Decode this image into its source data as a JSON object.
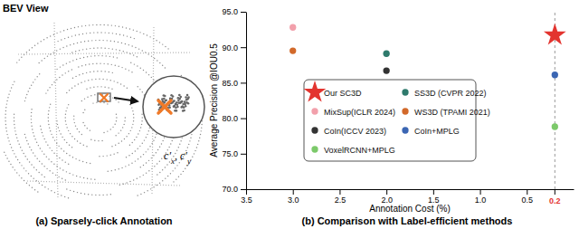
{
  "panel_a": {
    "title": "BEV View",
    "click_label": "c′x, c′y",
    "caption": "(a) Sparsely-click Annotation"
  },
  "chart_data": {
    "type": "scatter",
    "title": "(b) Comparison with Label-efficient methods",
    "x_label": "Annotation Cost (%)",
    "y_label": "Average Precision @IOU0.5",
    "xlim": [
      3.5,
      0.0
    ],
    "xticks": [
      {
        "value": 3.5,
        "label": "3.5"
      },
      {
        "value": 3.0,
        "label": "3.0"
      },
      {
        "value": 2.5,
        "label": "2.5"
      },
      {
        "value": 2.0,
        "label": "2.0"
      },
      {
        "value": 1.5,
        "label": "1.5"
      },
      {
        "value": 1.0,
        "label": "1.0"
      },
      {
        "value": 0.5,
        "label": "0.5"
      }
    ],
    "ylim": [
      70,
      95
    ],
    "yticks": [
      {
        "value": 70,
        "label": "70.0"
      },
      {
        "value": 75,
        "label": "75.0"
      },
      {
        "value": 80,
        "label": "80.0"
      },
      {
        "value": 85,
        "label": "85.0"
      },
      {
        "value": 90,
        "label": "90.0"
      },
      {
        "value": 95,
        "label": "95.0"
      }
    ],
    "grid": false,
    "legend": "center",
    "annotations": [
      {
        "x": 0.2,
        "text": "0.2",
        "color": "#e3342f"
      }
    ],
    "series": [
      {
        "name": "Our SC3D",
        "color": "#e3342f",
        "marker": "star",
        "x": [
          0.2
        ],
        "values": [
          91.7
        ]
      },
      {
        "name": "MixSup(ICLR 2024)",
        "color": "#f2a0ab",
        "marker": "circle",
        "x": [
          3.0
        ],
        "values": [
          92.8
        ]
      },
      {
        "name": "CoIn(ICCV 2023)",
        "color": "#333333",
        "marker": "circle",
        "x": [
          2.0
        ],
        "values": [
          86.7
        ]
      },
      {
        "name": "VoxelRCNN+MPLG",
        "color": "#7cc96a",
        "marker": "circle",
        "x": [
          0.2
        ],
        "values": [
          78.8
        ]
      },
      {
        "name": "SS3D (CVPR 2022)",
        "color": "#2e7a6c",
        "marker": "circle",
        "x": [
          2.0
        ],
        "values": [
          89.1
        ]
      },
      {
        "name": "WS3D (TPAMI 2021)",
        "color": "#d2692a",
        "marker": "circle",
        "x": [
          3.0
        ],
        "values": [
          89.5
        ]
      },
      {
        "name": "CoIn+MPLG",
        "color": "#3b66b3",
        "marker": "circle",
        "x": [
          0.2
        ],
        "values": [
          86.1
        ]
      }
    ]
  }
}
